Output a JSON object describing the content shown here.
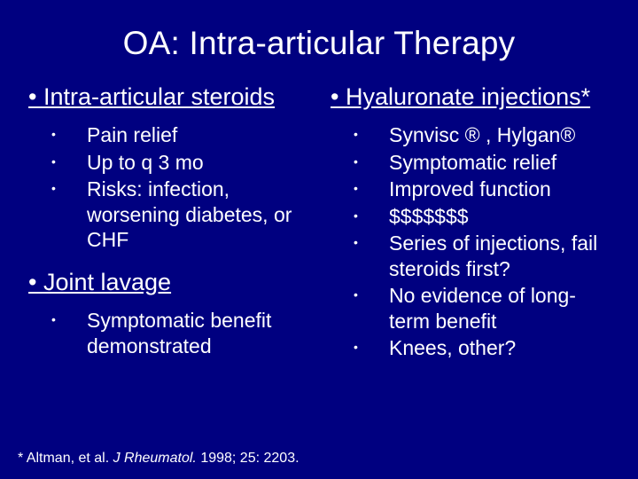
{
  "colors": {
    "background": "#000080",
    "text": "#ffffff"
  },
  "typography": {
    "title_fontsize": 37,
    "heading_fontsize": 27,
    "body_fontsize": 23,
    "footnote_fontsize": 16,
    "font_family": "Arial"
  },
  "title": "OA: Intra-articular Therapy",
  "left": {
    "heading1": "Intra-articular steroids",
    "items1": [
      "Pain relief",
      "Up to q 3 mo",
      "Risks: infection, worsening diabetes, or CHF"
    ],
    "heading2": "Joint lavage",
    "items2": [
      "Symptomatic benefit demonstrated"
    ]
  },
  "right": {
    "heading1": "Hyaluronate injections*",
    "items1": [
      "Synvisc ® , Hylgan®",
      "Symptomatic relief",
      "Improved function",
      "$$$$$$$",
      "Series of injections, fail steroids first?",
      "No evidence of long-term benefit",
      "Knees, other?"
    ]
  },
  "footnote": {
    "prefix": "* Altman, et al. ",
    "journal": "J Rheumatol.",
    "suffix": " 1998; 25: 2203."
  }
}
